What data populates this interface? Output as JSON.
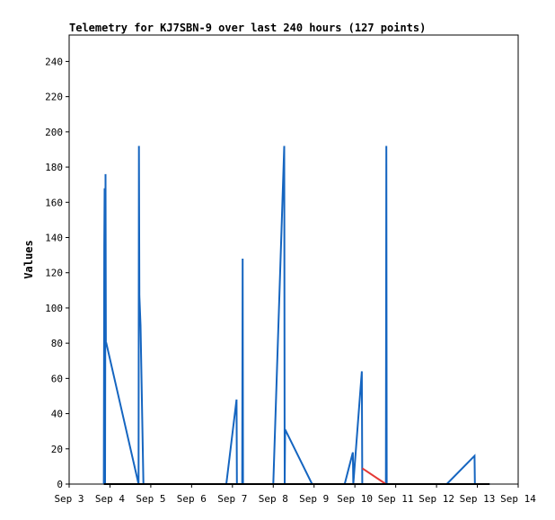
{
  "chart_data": {
    "type": "line",
    "title": "Telemetry for KJ7SBN-9 over last 240 hours (127 points)",
    "xlabel": "",
    "ylabel": "Values",
    "x_tick_labels": [
      "Sep 3",
      "Sep 4",
      "Sep 5",
      "Sep 6",
      "Sep 7",
      "Sep 8",
      "Sep 9",
      "Sep 10",
      "Sep 11",
      "Sep 12",
      "Sep 13",
      "Sep 14"
    ],
    "xlim": [
      3,
      14
    ],
    "ylim": [
      0,
      255
    ],
    "y_ticks": [
      0,
      20,
      40,
      60,
      80,
      100,
      120,
      140,
      160,
      180,
      200,
      220,
      240
    ],
    "grid": false,
    "series": [
      {
        "color": "#1565C0",
        "points": [
          [
            3.85,
            0
          ],
          [
            3.86,
            135
          ],
          [
            3.87,
            168
          ],
          [
            3.88,
            0
          ],
          [
            3.89,
            176
          ],
          [
            3.9,
            80
          ],
          [
            3.91,
            80
          ],
          [
            4.7,
            0
          ],
          [
            4.71,
            192
          ],
          [
            4.72,
            107
          ],
          [
            4.75,
            90
          ],
          [
            4.82,
            0
          ],
          [
            6.85,
            0
          ],
          [
            7.1,
            48
          ],
          [
            7.11,
            0
          ],
          [
            7.24,
            0
          ],
          [
            7.25,
            128
          ],
          [
            7.26,
            0
          ],
          [
            8.0,
            0
          ],
          [
            8.27,
            192
          ],
          [
            8.28,
            0
          ],
          [
            8.29,
            31
          ],
          [
            8.95,
            0
          ],
          [
            9.75,
            0
          ],
          [
            9.95,
            18
          ],
          [
            9.96,
            0
          ],
          [
            10.17,
            64
          ],
          [
            10.18,
            0
          ],
          [
            10.76,
            0
          ],
          [
            10.77,
            192
          ],
          [
            10.78,
            0
          ],
          [
            12.25,
            0
          ],
          [
            12.93,
            16
          ],
          [
            12.94,
            0
          ],
          [
            13.3,
            0
          ]
        ]
      },
      {
        "color": "#E53935",
        "points": [
          [
            10.18,
            9
          ],
          [
            10.76,
            0
          ]
        ]
      },
      {
        "color": "#000000",
        "points": [
          [
            3.85,
            0
          ],
          [
            13.3,
            0
          ]
        ]
      }
    ]
  }
}
